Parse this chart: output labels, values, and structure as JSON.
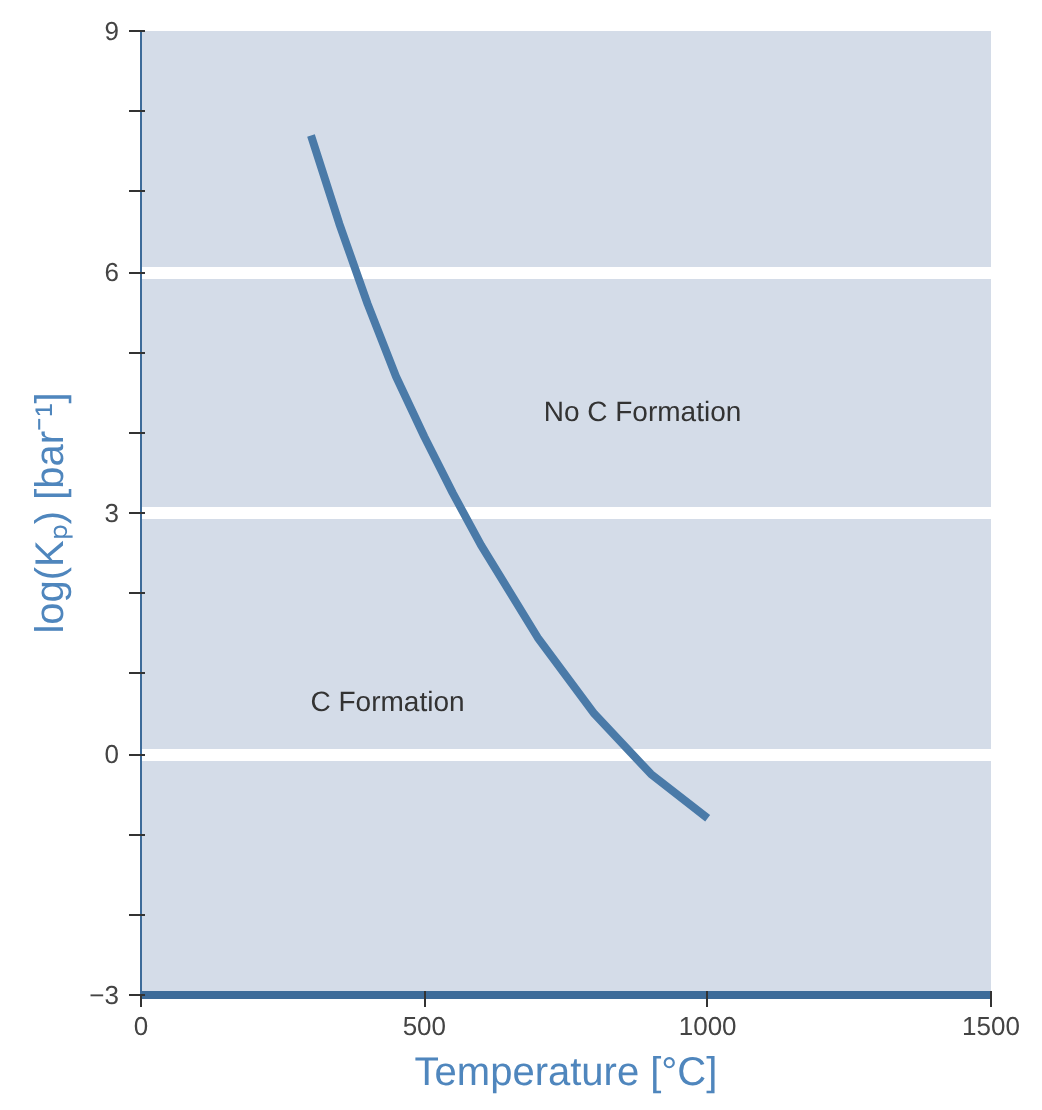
{
  "chart_data": {
    "type": "line",
    "xlabel": "Temperature [°C]",
    "ylabel": "log(Kₚ) [bar⁻¹]",
    "x": [
      300,
      350,
      400,
      450,
      500,
      550,
      600,
      700,
      800,
      900,
      1000
    ],
    "series": [
      {
        "color": "#4a7aa8",
        "values": [
          7.7,
          6.6,
          5.6,
          4.7,
          3.95,
          3.25,
          2.6,
          1.45,
          0.5,
          -0.25,
          -0.8
        ]
      }
    ],
    "xlim": [
      0,
      1500
    ],
    "ylim": [
      -3,
      9
    ],
    "xticks": [
      0,
      500,
      1000,
      1500
    ],
    "yticks": [
      {
        "value": -3,
        "label": "−3"
      },
      {
        "value": -2,
        "label": null
      },
      {
        "value": -1,
        "label": null
      },
      0,
      {
        "value": 1,
        "label": null
      },
      {
        "value": 2,
        "label": null
      },
      3,
      {
        "value": 4,
        "label": null
      },
      {
        "value": 5,
        "label": null
      },
      6,
      {
        "value": 7,
        "label": null
      },
      {
        "value": 8,
        "label": null
      },
      9
    ],
    "grid": "y",
    "marker": "none",
    "line_style": "solid",
    "annotations": [
      "No C Formation",
      "C Formation"
    ]
  }
}
